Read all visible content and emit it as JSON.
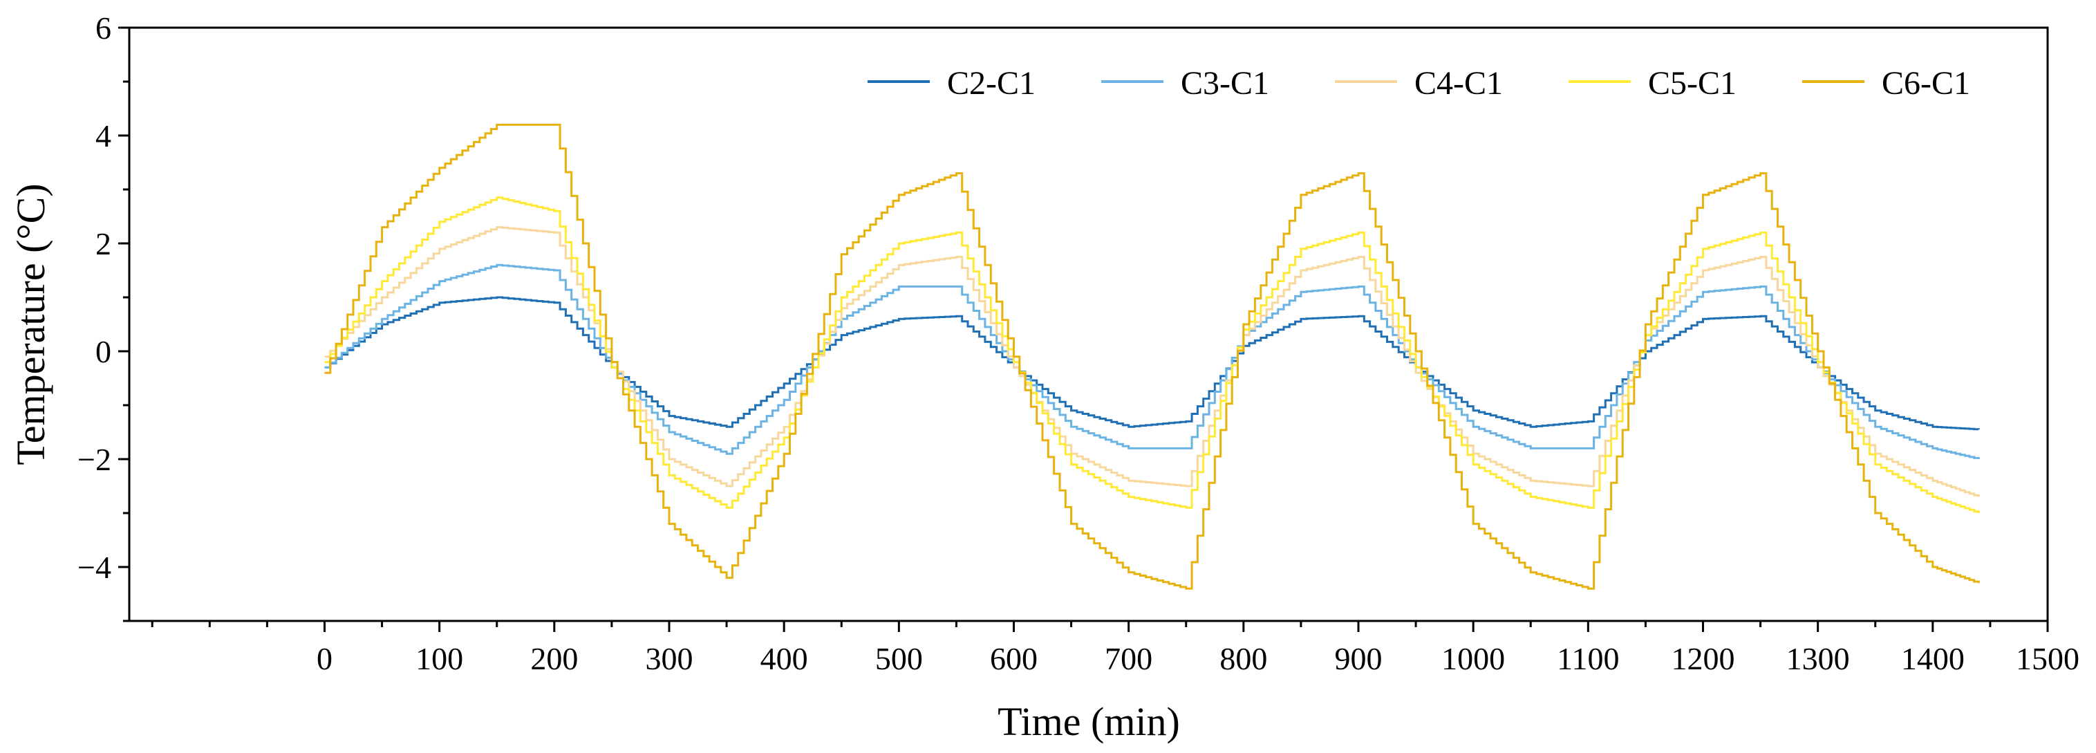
{
  "chart_data": {
    "type": "line",
    "title": "",
    "xlabel": "Time (min)",
    "ylabel": "Temperature (°C)",
    "xlim": [
      -170,
      1500
    ],
    "ylim": [
      -5,
      6
    ],
    "xticks": [
      0,
      100,
      200,
      300,
      400,
      500,
      600,
      700,
      800,
      900,
      1000,
      1100,
      1200,
      1300,
      1400,
      1500
    ],
    "yticks": [
      -4,
      -2,
      0,
      2,
      4,
      6
    ],
    "xtick_labels": [
      "0",
      "100",
      "200",
      "300",
      "400",
      "500",
      "600",
      "700",
      "800",
      "900",
      "1000",
      "1100",
      "1200",
      "1300",
      "1400",
      "1500"
    ],
    "ytick_labels": [
      "−4",
      "−2",
      "0",
      "2",
      "4",
      "6"
    ],
    "grid": false,
    "legend_position": "top-right",
    "x": [
      0,
      50,
      100,
      150,
      200,
      250,
      300,
      350,
      400,
      450,
      500,
      550,
      600,
      650,
      700,
      750,
      800,
      850,
      900,
      950,
      1000,
      1050,
      1100,
      1150,
      1200,
      1250,
      1300,
      1350,
      1400,
      1440
    ],
    "series": [
      {
        "name": "C2-C1",
        "color": "#1f6fb4",
        "values": [
          -0.3,
          0.5,
          0.9,
          1.0,
          0.9,
          -0.3,
          -1.2,
          -1.4,
          -0.6,
          0.3,
          0.6,
          0.65,
          -0.3,
          -1.1,
          -1.4,
          -1.3,
          0.1,
          0.6,
          0.65,
          -0.3,
          -1.1,
          -1.4,
          -1.3,
          0.0,
          0.6,
          0.65,
          -0.3,
          -1.1,
          -1.4,
          -1.45
        ]
      },
      {
        "name": "C3-C1",
        "color": "#6bb3e3",
        "values": [
          -0.3,
          0.6,
          1.3,
          1.6,
          1.5,
          -0.3,
          -1.5,
          -1.9,
          -0.9,
          0.6,
          1.2,
          1.2,
          -0.3,
          -1.4,
          -1.8,
          -1.8,
          0.3,
          1.1,
          1.2,
          -0.3,
          -1.4,
          -1.8,
          -1.8,
          0.2,
          1.1,
          1.2,
          -0.3,
          -1.4,
          -1.8,
          -2.0
        ]
      },
      {
        "name": "C4-C1",
        "color": "#f7d79c",
        "values": [
          -0.1,
          1.0,
          1.9,
          2.3,
          2.2,
          -0.2,
          -2.0,
          -2.5,
          -1.4,
          0.8,
          1.6,
          1.75,
          -0.3,
          -1.9,
          -2.4,
          -2.5,
          0.3,
          1.5,
          1.75,
          -0.4,
          -1.9,
          -2.4,
          -2.5,
          0.3,
          1.5,
          1.75,
          -0.3,
          -1.9,
          -2.4,
          -2.7
        ]
      },
      {
        "name": "C5-C1",
        "color": "#ffe936",
        "values": [
          -0.2,
          1.3,
          2.4,
          2.85,
          2.6,
          -0.3,
          -2.3,
          -2.9,
          -1.6,
          1.0,
          2.0,
          2.2,
          -0.2,
          -2.1,
          -2.7,
          -2.9,
          0.4,
          1.9,
          2.2,
          -0.3,
          -2.1,
          -2.7,
          -2.9,
          0.3,
          1.9,
          2.2,
          -0.2,
          -2.1,
          -2.7,
          -3.0
        ]
      },
      {
        "name": "C6-C1",
        "color": "#e8b20e",
        "values": [
          -0.4,
          2.3,
          3.4,
          4.2,
          4.2,
          -0.2,
          -3.2,
          -4.2,
          -1.9,
          1.8,
          2.9,
          3.3,
          -0.1,
          -3.2,
          -4.1,
          -4.4,
          0.5,
          2.9,
          3.3,
          0.0,
          -3.2,
          -4.1,
          -4.4,
          0.5,
          2.9,
          3.3,
          0.0,
          -3.0,
          -4.0,
          -4.3
        ]
      }
    ]
  }
}
